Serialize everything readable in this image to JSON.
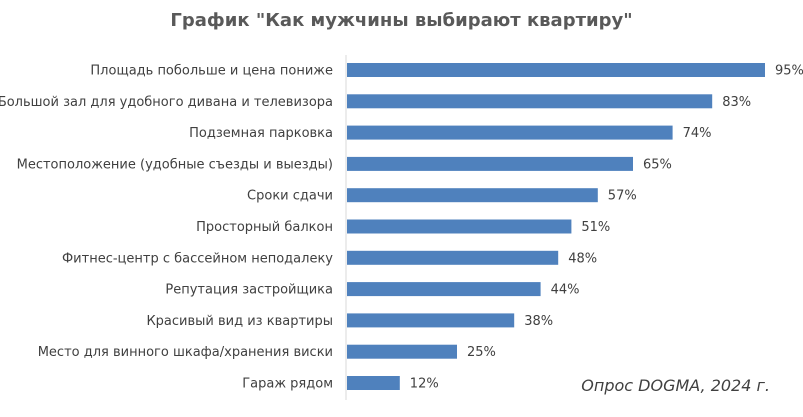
{
  "chart_data": {
    "type": "bar",
    "orientation": "horizontal",
    "title": "График \"Как мужчины выбирают квартиру\"",
    "categories": [
      "Площадь побольше и цена пониже",
      "Большой зал для удобного дивана и телевизора",
      "Подземная парковка",
      "Местоположение (удобные съезды и выезды)",
      "Сроки сдачи",
      "Просторный балкон",
      "Фитнес-центр с бассейном неподалеку",
      "Репутация застройщика",
      "Красивый вид из квартиры",
      "Место для винного шкафа/хранения виски",
      "Гараж рядом"
    ],
    "values": [
      95,
      83,
      74,
      65,
      57,
      51,
      48,
      44,
      38,
      25,
      12
    ],
    "data_labels": [
      "95%",
      "83%",
      "74%",
      "65%",
      "57%",
      "51%",
      "48%",
      "44%",
      "38%",
      "25%",
      "12%"
    ],
    "unit": "%",
    "xlim": [
      0,
      100
    ],
    "grid": false,
    "legend": "none",
    "bar_color": "#4f81bd",
    "axis_color": "#d9d9d9",
    "label_color": "#404040",
    "title_color": "#595959"
  },
  "source_note": "Опрос DOGMA, 2024 г."
}
